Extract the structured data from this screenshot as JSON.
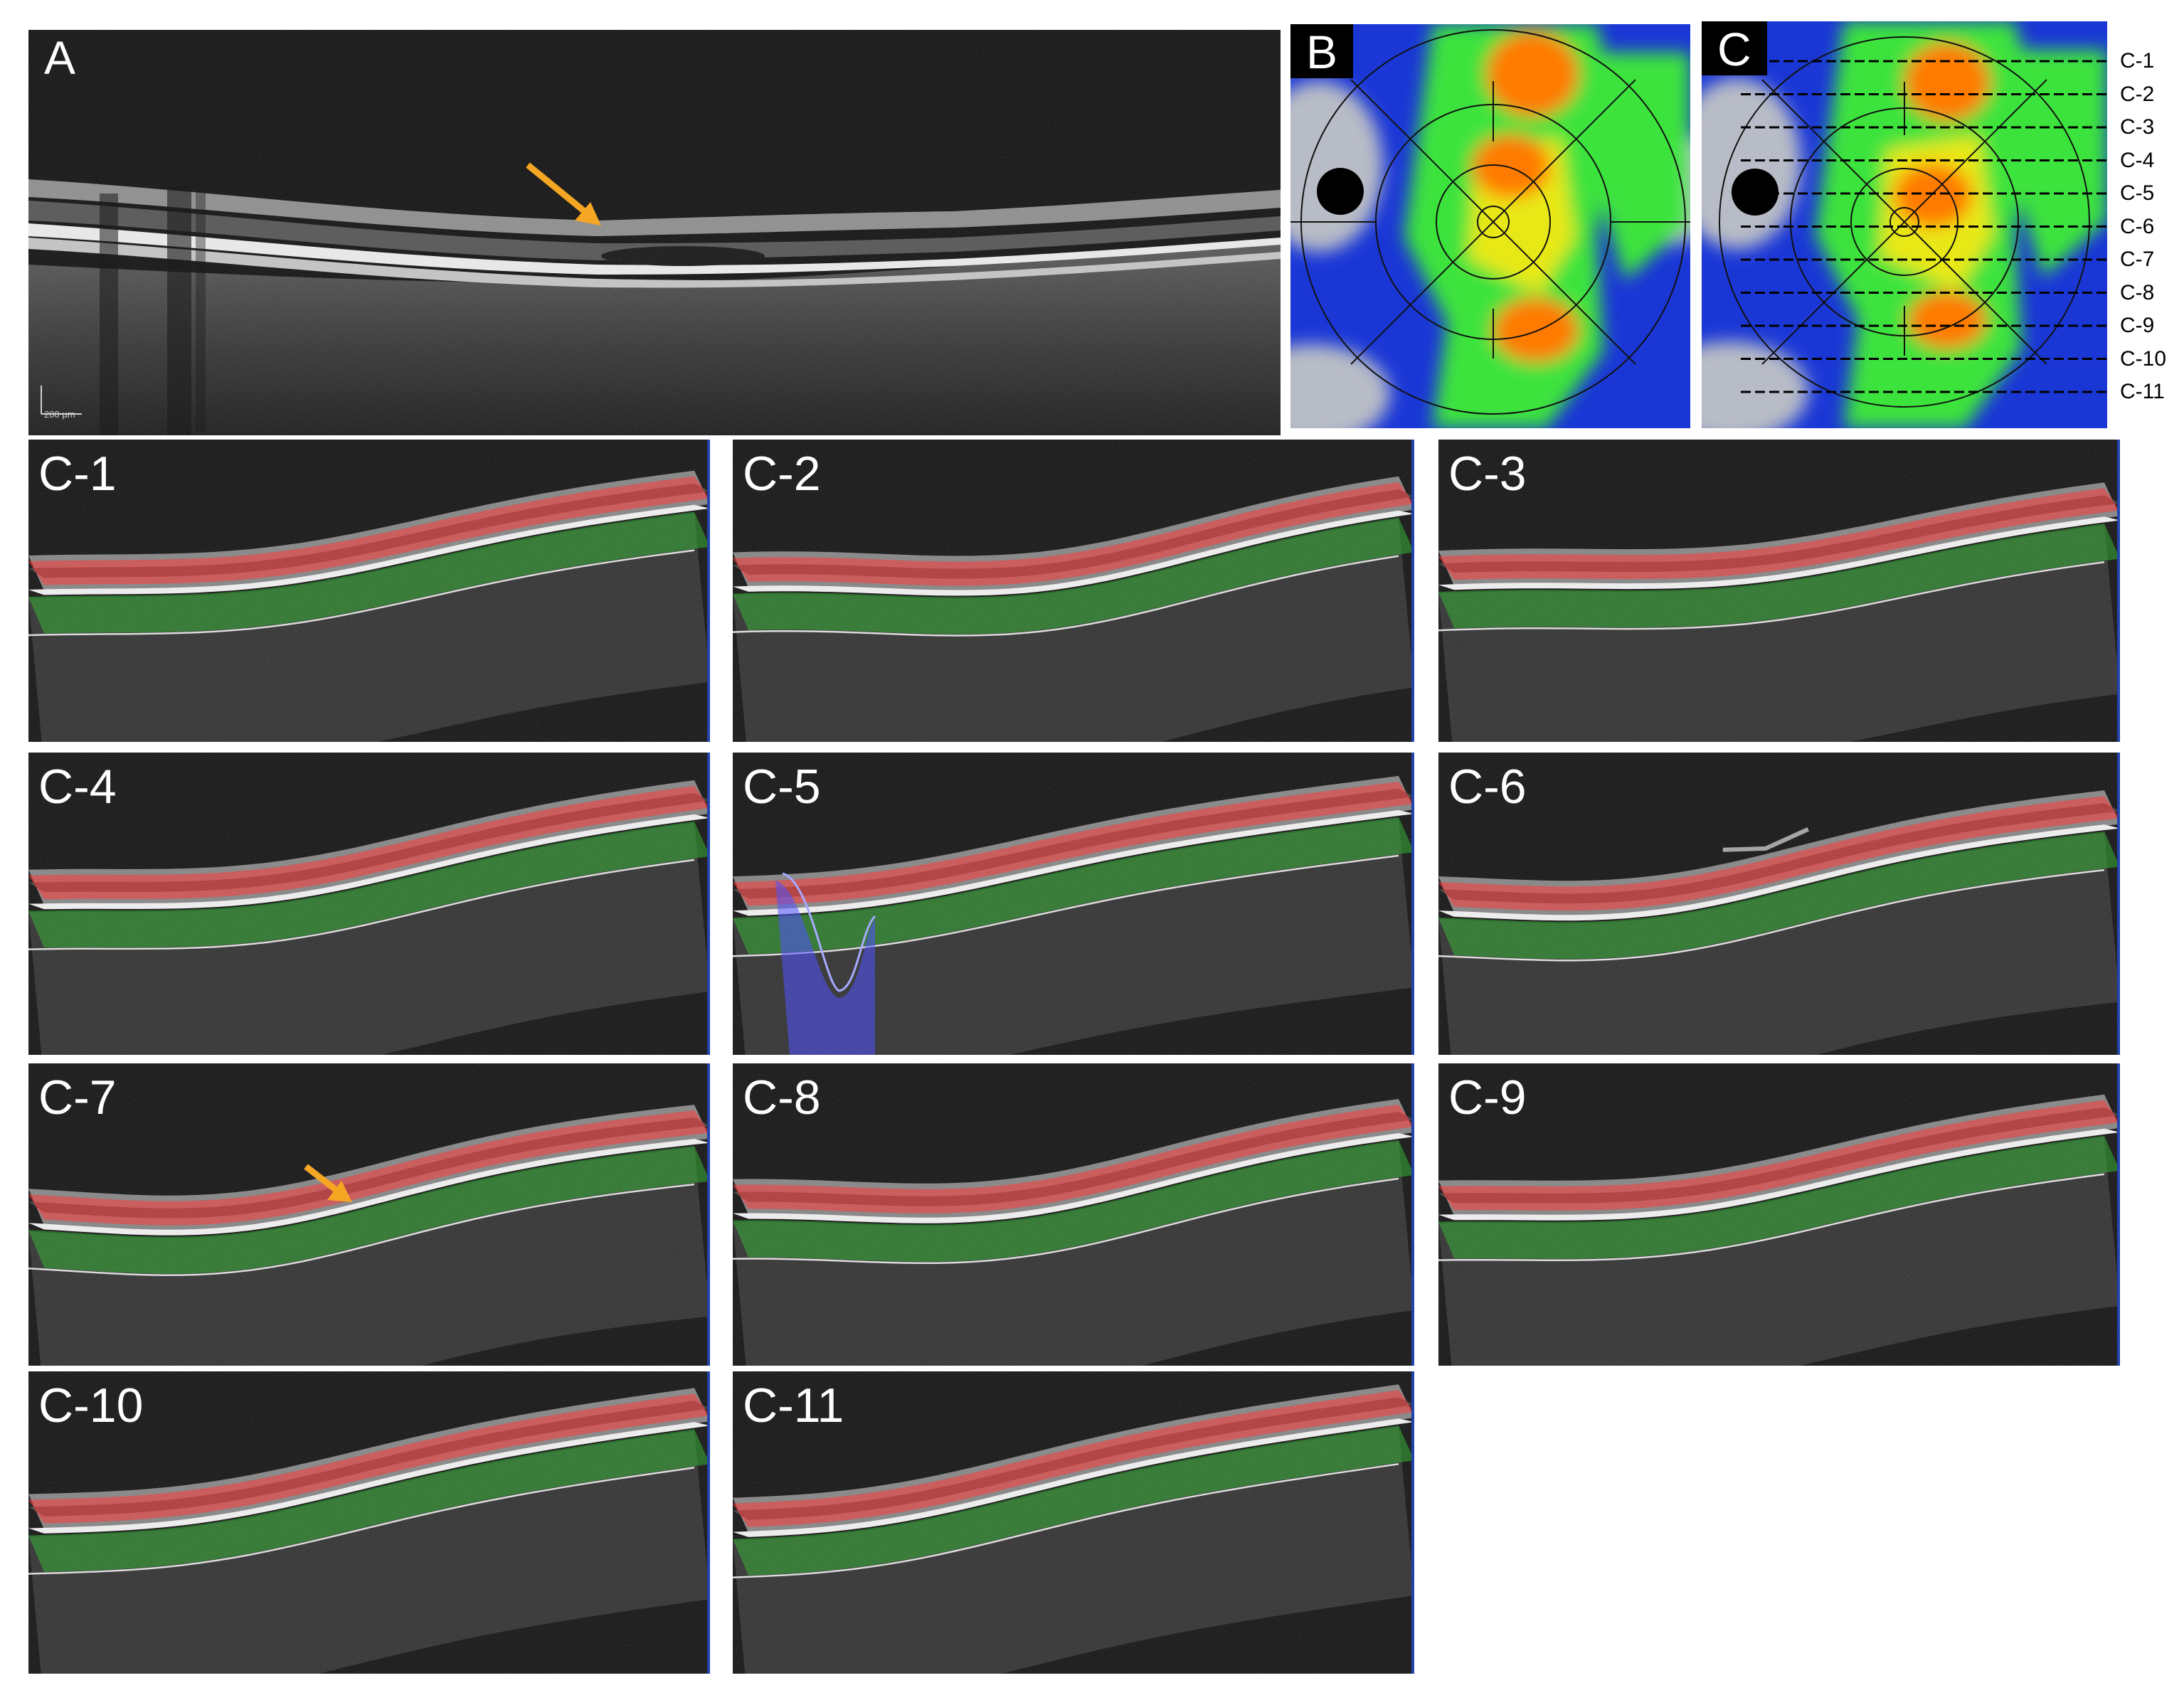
{
  "panelA": {
    "label": "A",
    "scale_bar": "200 µm"
  },
  "panelB": {
    "label": "B"
  },
  "panelC": {
    "label": "C",
    "scan_lines": [
      "C-1",
      "C-2",
      "C-3",
      "C-4",
      "C-5",
      "C-6",
      "C-7",
      "C-8",
      "C-9",
      "C-10",
      "C-11"
    ]
  },
  "scans": [
    {
      "label": "C-1"
    },
    {
      "label": "C-2"
    },
    {
      "label": "C-3"
    },
    {
      "label": "C-4"
    },
    {
      "label": "C-5"
    },
    {
      "label": "C-6"
    },
    {
      "label": "C-7"
    },
    {
      "label": "C-8"
    },
    {
      "label": "C-9"
    },
    {
      "label": "C-10"
    },
    {
      "label": "C-11"
    }
  ],
  "colors": {
    "arrow": "#f5a623",
    "overlay_red": "#ff2020",
    "overlay_green": "#1fa51f",
    "overlay_blue": "#3c3cff",
    "map_blue": "#1a37d6",
    "map_green": "#3ee33e",
    "map_yellow": "#e8e814",
    "map_orange": "#ff7a00",
    "map_gray": "#b8bcc6"
  }
}
